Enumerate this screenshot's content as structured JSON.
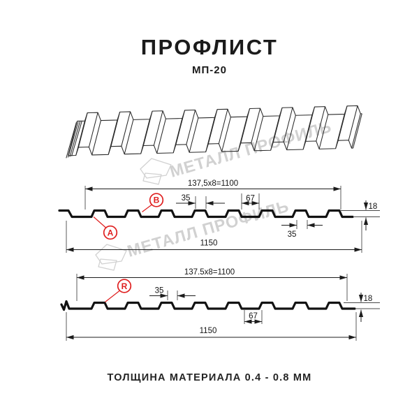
{
  "title": "ПРОФЛИСТ",
  "subtitle": "МП-20",
  "footer": "ТОЛЩИНА МАТЕРИАЛА 0.4 - 0.8 ММ",
  "watermark": {
    "brand": "МЕТАЛЛ ПРОФИЛЬ"
  },
  "colors": {
    "accent_red": "#df1f1f",
    "line": "#1c1c1c",
    "watermark_gray": "#c9c9c9"
  },
  "section1": {
    "module_dim": "137,5x8=1100",
    "overall_width_dim": "1150",
    "rib_top_dim": "35",
    "valley_dim": "67",
    "lower_rib_dim": "35",
    "height_dim": "18",
    "callout_a": "A",
    "callout_b": "B"
  },
  "section2": {
    "module_dim": "137.5x8=1100",
    "overall_width_dim": "1150",
    "rib_top_dim": "35",
    "valley_dim": "67",
    "height_dim": "18",
    "callout_r": "R"
  }
}
